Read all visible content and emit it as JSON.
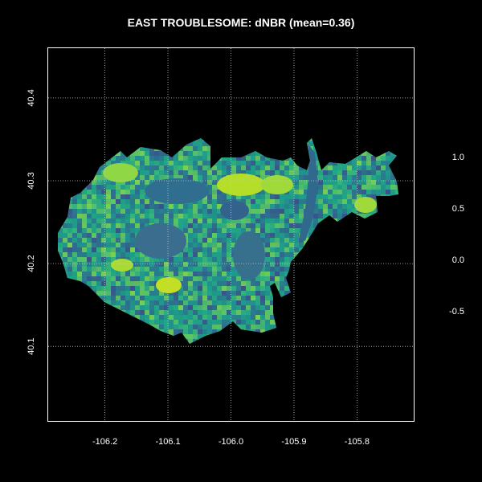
{
  "title": "EAST TROUBLESOME: dNBR (mean=0.36)",
  "chart_data": {
    "type": "heatmap",
    "title": "EAST TROUBLESOME: dNBR (mean=0.36)",
    "xlabel": "",
    "ylabel": "",
    "xlim": [
      -106.29,
      -105.71
    ],
    "ylim": [
      40.01,
      40.46
    ],
    "x_ticks": [
      {
        "value": -106.2,
        "label": "-106.2"
      },
      {
        "value": -106.1,
        "label": "-106.1"
      },
      {
        "value": -106.0,
        "label": "-106.0"
      },
      {
        "value": -105.9,
        "label": "-105.9"
      },
      {
        "value": -105.8,
        "label": "-105.8"
      }
    ],
    "y_ticks": [
      {
        "value": 40.1,
        "label": "40.1"
      },
      {
        "value": 40.2,
        "label": "40.2"
      },
      {
        "value": 40.3,
        "label": "40.3"
      },
      {
        "value": 40.4,
        "label": "40.4"
      }
    ],
    "grid": true,
    "grid_style": "dotted",
    "colormap": "viridis",
    "colors": {
      "background": "#000000",
      "low": "#3b528b",
      "mid": "#21918c",
      "high": "#5ec962",
      "max": "#d6e21b",
      "grid": "#c8c8c8"
    },
    "legend": {
      "placement": "right",
      "labels": [
        {
          "value": 1.0,
          "label": "1.0"
        },
        {
          "value": 0.5,
          "label": "0.5"
        },
        {
          "value": 0.0,
          "label": "0.0"
        },
        {
          "value": -0.5,
          "label": "-0.5"
        }
      ]
    },
    "mean": 0.36
  }
}
